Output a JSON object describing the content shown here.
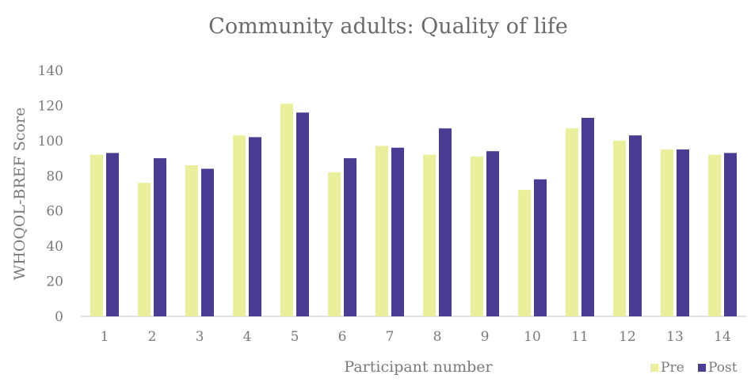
{
  "chart_data": {
    "type": "bar",
    "title": "Community adults: Quality of life",
    "xlabel": "Participant number",
    "ylabel": "WHOQOL-BREF Score",
    "categories": [
      "1",
      "2",
      "3",
      "4",
      "5",
      "6",
      "7",
      "8",
      "9",
      "10",
      "11",
      "12",
      "13",
      "14"
    ],
    "series": [
      {
        "name": "Pre",
        "color": "#e9ef9a",
        "values": [
          92,
          76,
          86,
          103,
          121,
          82,
          97,
          92,
          91,
          72,
          107,
          100,
          95,
          92
        ]
      },
      {
        "name": "Post",
        "color": "#4a3c93",
        "values": [
          93,
          90,
          84,
          102,
          116,
          90,
          96,
          107,
          94,
          78,
          113,
          103,
          95,
          93
        ]
      }
    ],
    "ylim": [
      0,
      140
    ],
    "yticks": [
      0,
      20,
      40,
      60,
      80,
      100,
      120,
      140
    ],
    "grid": false,
    "legend_position": "bottom-right"
  }
}
